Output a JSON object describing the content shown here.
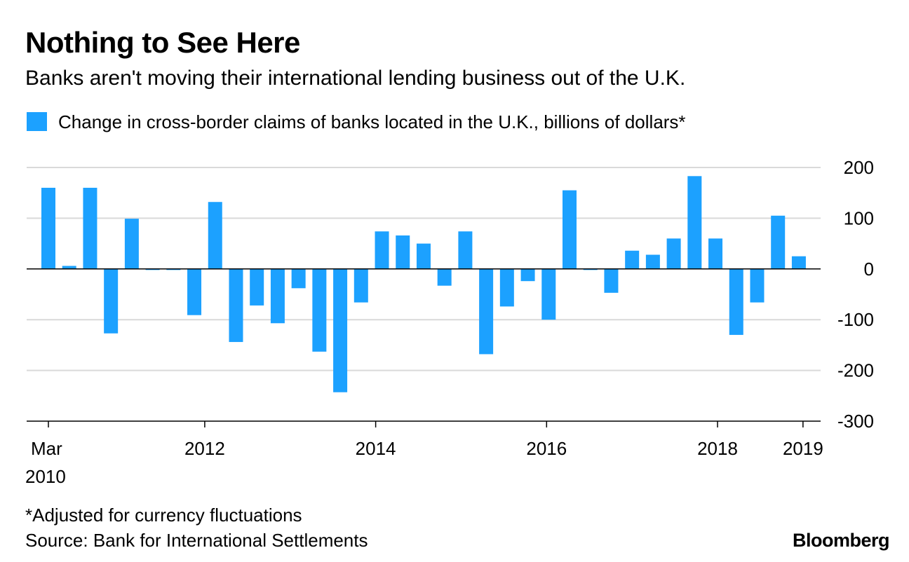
{
  "header": {
    "title": "Nothing to See Here",
    "subtitle": "Banks aren't moving their international lending business out of the U.K."
  },
  "footer": {
    "footnote": "*Adjusted for currency fluctuations",
    "source": "Source: Bank for International Settlements",
    "brand": "Bloomberg"
  },
  "chart_data": {
    "type": "bar",
    "title": "Nothing to See Here",
    "subtitle": "Banks aren't moving their international lending business out of the U.K.",
    "legend": [
      {
        "label": "Change in cross-border claims of banks located in the U.K., billions of dollars*",
        "color": "#1ca1ff"
      }
    ],
    "legend_position": "top-left",
    "bar_color": "#1ca1ff",
    "grid": true,
    "ylim": [
      -300,
      200
    ],
    "y_ticks": [
      200,
      100,
      0,
      -100,
      -200,
      -300
    ],
    "y_tick_labels": [
      "200",
      "100",
      "0",
      "-100",
      "-200",
      "-300"
    ],
    "x_tick_labels": [
      {
        "label": "Mar",
        "label2": "2010",
        "quarter": 0
      },
      {
        "label": "2012",
        "quarter": 7.5
      },
      {
        "label": "2014",
        "quarter": 15.7
      },
      {
        "label": "2016",
        "quarter": 23.9
      },
      {
        "label": "2018",
        "quarter": 32.1
      },
      {
        "label": "2019",
        "quarter": 36.2
      }
    ],
    "series": [
      {
        "name": "Change in cross-border claims of banks located in the U.K., billions of dollars*",
        "values": [
          160,
          6,
          160,
          -127,
          99,
          -2,
          -2,
          -91,
          132,
          -144,
          -72,
          -107,
          -38,
          -163,
          -243,
          -66,
          74,
          66,
          50,
          -33,
          74,
          -168,
          -74,
          -24,
          -100,
          155,
          -2,
          -47,
          36,
          28,
          60,
          183,
          60,
          -130,
          -66,
          105,
          25
        ]
      }
    ],
    "categories": [
      "Mar 2010",
      "Jun 2010",
      "Sep 2010",
      "Dec 2010",
      "Mar 2011",
      "Jun 2011",
      "Sep 2011",
      "Dec 2011",
      "Mar 2012",
      "Jun 2012",
      "Sep 2012",
      "Dec 2012",
      "Mar 2013",
      "Jun 2013",
      "Sep 2013",
      "Dec 2013",
      "Mar 2014",
      "Jun 2014",
      "Sep 2014",
      "Dec 2014",
      "Mar 2015",
      "Jun 2015",
      "Sep 2015",
      "Dec 2015",
      "Mar 2016",
      "Jun 2016",
      "Sep 2016",
      "Dec 2016",
      "Mar 2017",
      "Jun 2017",
      "Sep 2017",
      "Dec 2017",
      "Mar 2018",
      "Jun 2018",
      "Sep 2018",
      "Dec 2018",
      "Mar 2019"
    ]
  }
}
